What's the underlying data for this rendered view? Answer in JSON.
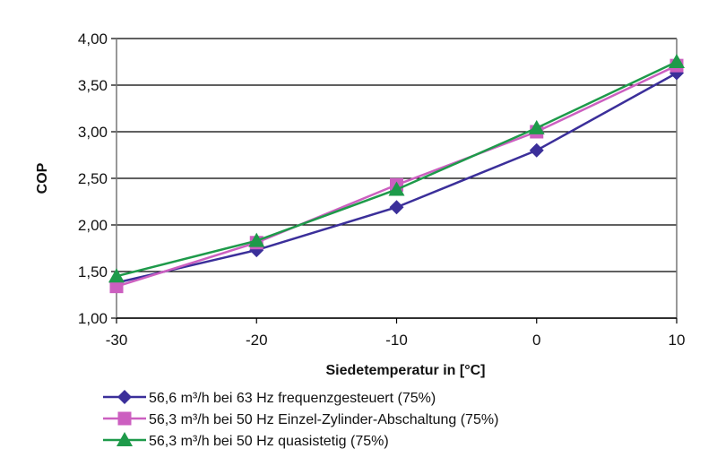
{
  "chart_data": {
    "type": "line",
    "xlabel": "Siedetemperatur in [°C]",
    "ylabel": "COP",
    "x": [
      -30,
      -20,
      -10,
      0,
      10
    ],
    "xlim": [
      -30,
      10
    ],
    "ylim": [
      1.0,
      4.0
    ],
    "yticks": [
      1.0,
      1.5,
      2.0,
      2.5,
      3.0,
      3.5,
      4.0
    ],
    "ytick_labels": [
      "1,00",
      "1,50",
      "2,00",
      "2,50",
      "3,00",
      "3,50",
      "4,00"
    ],
    "xtick_labels": [
      "-30",
      "-20",
      "-10",
      "0",
      "10"
    ],
    "grid": "horizontal",
    "legend_position": "bottom",
    "series": [
      {
        "name": "56,6 m³/h bei 63 Hz frequenzgesteuert (75%)",
        "values": [
          1.38,
          1.73,
          2.19,
          2.8,
          3.63
        ],
        "color": "#3b2f9a",
        "marker": "diamond"
      },
      {
        "name": "56,3 m³/h bei 50 Hz Einzel-Zylinder-Abschaltung (75%)",
        "values": [
          1.34,
          1.81,
          2.43,
          3.0,
          3.71
        ],
        "color": "#cc5fc0",
        "marker": "square"
      },
      {
        "name": "56,3 m³/h bei 50 Hz quasistetig (75%)",
        "values": [
          1.45,
          1.83,
          2.38,
          3.04,
          3.75
        ],
        "color": "#1e9a4a",
        "marker": "triangle"
      }
    ]
  }
}
